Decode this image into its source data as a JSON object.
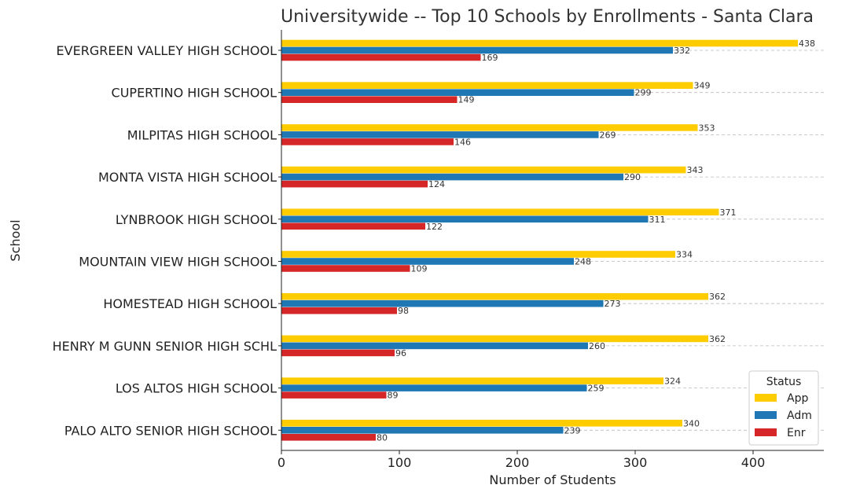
{
  "chart_data": {
    "type": "bar",
    "orientation": "horizontal",
    "title": "Universitywide -- Top 10 Schools by Enrollments - Santa Clara",
    "xlabel": "Number of Students",
    "ylabel": "School",
    "xlim": [
      0,
      460
    ],
    "xticks": [
      0,
      100,
      200,
      300,
      400
    ],
    "grid": "horizontal dashed",
    "legend": {
      "title": "Status",
      "placement": "bottom-right"
    },
    "categories": [
      "EVERGREEN VALLEY HIGH SCHOOL",
      "CUPERTINO HIGH SCHOOL",
      "MILPITAS HIGH SCHOOL",
      "MONTA VISTA HIGH SCHOOL",
      "LYNBROOK HIGH SCHOOL",
      "MOUNTAIN VIEW HIGH SCHOOL",
      "HOMESTEAD HIGH SCHOOL",
      "HENRY M GUNN SENIOR HIGH SCHL",
      "LOS ALTOS HIGH SCHOOL",
      "PALO ALTO SENIOR HIGH SCHOOL"
    ],
    "series": [
      {
        "name": "App",
        "color": "#ffcc00",
        "values": [
          438,
          349,
          353,
          343,
          371,
          334,
          362,
          362,
          324,
          340
        ]
      },
      {
        "name": "Adm",
        "color": "#1f77b4",
        "values": [
          332,
          299,
          269,
          290,
          311,
          248,
          273,
          260,
          259,
          239
        ]
      },
      {
        "name": "Enr",
        "color": "#d62728",
        "values": [
          169,
          149,
          146,
          124,
          122,
          109,
          98,
          96,
          89,
          80
        ]
      }
    ]
  }
}
